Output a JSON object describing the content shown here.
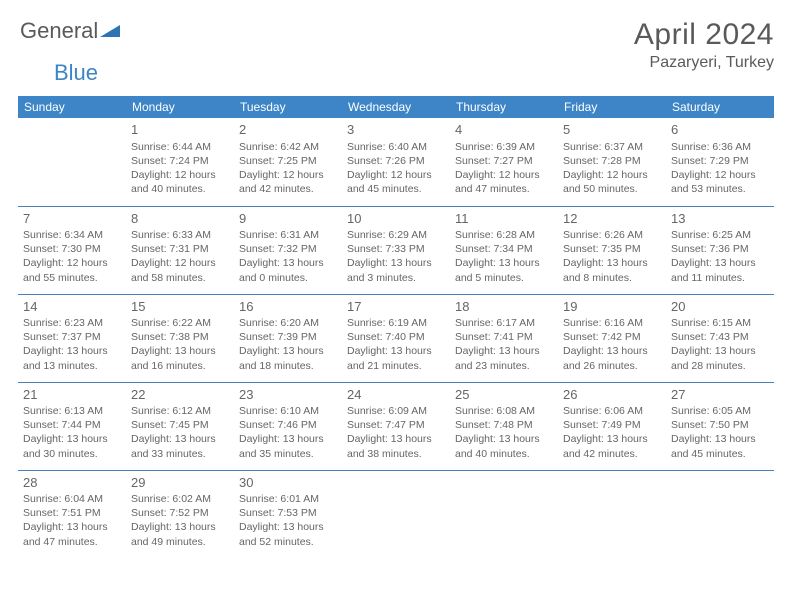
{
  "logo": {
    "part1": "General",
    "part2": "Blue"
  },
  "title": "April 2024",
  "location": "Pazaryeri, Turkey",
  "theme": {
    "header_bg": "#3d85c6",
    "header_text": "#ffffff",
    "text_color": "#666666",
    "rule_color": "#4a7fb5",
    "background": "#ffffff",
    "title_fontsize": 30,
    "daynum_fontsize": 13,
    "cell_fontsize": 10.5
  },
  "weekdays": [
    "Sunday",
    "Monday",
    "Tuesday",
    "Wednesday",
    "Thursday",
    "Friday",
    "Saturday"
  ],
  "weeks": [
    [
      null,
      {
        "d": "1",
        "sr": "6:44 AM",
        "ss": "7:24 PM",
        "dl": "12 hours and 40 minutes."
      },
      {
        "d": "2",
        "sr": "6:42 AM",
        "ss": "7:25 PM",
        "dl": "12 hours and 42 minutes."
      },
      {
        "d": "3",
        "sr": "6:40 AM",
        "ss": "7:26 PM",
        "dl": "12 hours and 45 minutes."
      },
      {
        "d": "4",
        "sr": "6:39 AM",
        "ss": "7:27 PM",
        "dl": "12 hours and 47 minutes."
      },
      {
        "d": "5",
        "sr": "6:37 AM",
        "ss": "7:28 PM",
        "dl": "12 hours and 50 minutes."
      },
      {
        "d": "6",
        "sr": "6:36 AM",
        "ss": "7:29 PM",
        "dl": "12 hours and 53 minutes."
      }
    ],
    [
      {
        "d": "7",
        "sr": "6:34 AM",
        "ss": "7:30 PM",
        "dl": "12 hours and 55 minutes."
      },
      {
        "d": "8",
        "sr": "6:33 AM",
        "ss": "7:31 PM",
        "dl": "12 hours and 58 minutes."
      },
      {
        "d": "9",
        "sr": "6:31 AM",
        "ss": "7:32 PM",
        "dl": "13 hours and 0 minutes."
      },
      {
        "d": "10",
        "sr": "6:29 AM",
        "ss": "7:33 PM",
        "dl": "13 hours and 3 minutes."
      },
      {
        "d": "11",
        "sr": "6:28 AM",
        "ss": "7:34 PM",
        "dl": "13 hours and 5 minutes."
      },
      {
        "d": "12",
        "sr": "6:26 AM",
        "ss": "7:35 PM",
        "dl": "13 hours and 8 minutes."
      },
      {
        "d": "13",
        "sr": "6:25 AM",
        "ss": "7:36 PM",
        "dl": "13 hours and 11 minutes."
      }
    ],
    [
      {
        "d": "14",
        "sr": "6:23 AM",
        "ss": "7:37 PM",
        "dl": "13 hours and 13 minutes."
      },
      {
        "d": "15",
        "sr": "6:22 AM",
        "ss": "7:38 PM",
        "dl": "13 hours and 16 minutes."
      },
      {
        "d": "16",
        "sr": "6:20 AM",
        "ss": "7:39 PM",
        "dl": "13 hours and 18 minutes."
      },
      {
        "d": "17",
        "sr": "6:19 AM",
        "ss": "7:40 PM",
        "dl": "13 hours and 21 minutes."
      },
      {
        "d": "18",
        "sr": "6:17 AM",
        "ss": "7:41 PM",
        "dl": "13 hours and 23 minutes."
      },
      {
        "d": "19",
        "sr": "6:16 AM",
        "ss": "7:42 PM",
        "dl": "13 hours and 26 minutes."
      },
      {
        "d": "20",
        "sr": "6:15 AM",
        "ss": "7:43 PM",
        "dl": "13 hours and 28 minutes."
      }
    ],
    [
      {
        "d": "21",
        "sr": "6:13 AM",
        "ss": "7:44 PM",
        "dl": "13 hours and 30 minutes."
      },
      {
        "d": "22",
        "sr": "6:12 AM",
        "ss": "7:45 PM",
        "dl": "13 hours and 33 minutes."
      },
      {
        "d": "23",
        "sr": "6:10 AM",
        "ss": "7:46 PM",
        "dl": "13 hours and 35 minutes."
      },
      {
        "d": "24",
        "sr": "6:09 AM",
        "ss": "7:47 PM",
        "dl": "13 hours and 38 minutes."
      },
      {
        "d": "25",
        "sr": "6:08 AM",
        "ss": "7:48 PM",
        "dl": "13 hours and 40 minutes."
      },
      {
        "d": "26",
        "sr": "6:06 AM",
        "ss": "7:49 PM",
        "dl": "13 hours and 42 minutes."
      },
      {
        "d": "27",
        "sr": "6:05 AM",
        "ss": "7:50 PM",
        "dl": "13 hours and 45 minutes."
      }
    ],
    [
      {
        "d": "28",
        "sr": "6:04 AM",
        "ss": "7:51 PM",
        "dl": "13 hours and 47 minutes."
      },
      {
        "d": "29",
        "sr": "6:02 AM",
        "ss": "7:52 PM",
        "dl": "13 hours and 49 minutes."
      },
      {
        "d": "30",
        "sr": "6:01 AM",
        "ss": "7:53 PM",
        "dl": "13 hours and 52 minutes."
      },
      null,
      null,
      null,
      null
    ]
  ]
}
